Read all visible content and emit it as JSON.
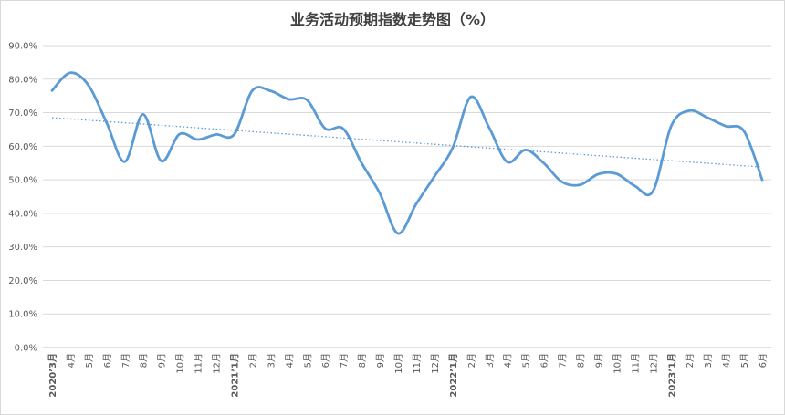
{
  "chart_data": {
    "type": "line",
    "title": "业务活动预期指数走势图（%）",
    "xlabel": "",
    "ylabel": "",
    "ylim": [
      0,
      90
    ],
    "yticks": [
      "0.0%",
      "10.0%",
      "20.0%",
      "30.0%",
      "40.0%",
      "50.0%",
      "60.0%",
      "70.0%",
      "80.0%",
      "90.0%"
    ],
    "grid": true,
    "trendline": {
      "type": "linear",
      "style": "dotted",
      "start": 68.5,
      "end": 53.8
    },
    "colors": {
      "series": "#5b9bd5",
      "grid": "#d9d9d9",
      "axis_text": "#595959",
      "title": "#404040"
    },
    "categories": [
      "2020’3月",
      "4月",
      "5月",
      "6月",
      "7月",
      "8月",
      "9月",
      "10月",
      "11月",
      "12月",
      "2021’1月",
      "2月",
      "3月",
      "4月",
      "5月",
      "6月",
      "7月",
      "8月",
      "9月",
      "10月",
      "11月",
      "12月",
      "2022’1月",
      "2月",
      "3月",
      "4月",
      "5月",
      "6月",
      "7月",
      "8月",
      "9月",
      "10月",
      "11月",
      "12月",
      "2023’1月",
      "2月",
      "3月",
      "4月",
      "5月",
      "6月"
    ],
    "series": [
      {
        "values": [
          76.6,
          81.9,
          78.2,
          67.0,
          55.4,
          69.5,
          55.6,
          63.6,
          62.0,
          63.5,
          63.5,
          76.6,
          76.5,
          74.0,
          73.8,
          65.3,
          65.2,
          55.0,
          46.0,
          34.0,
          42.8,
          51.0,
          59.5,
          74.7,
          65.6,
          55.3,
          58.9,
          55.0,
          49.4,
          48.5,
          51.7,
          51.8,
          48.2,
          46.6,
          66.0,
          70.6,
          68.5,
          66.0,
          64.5,
          50.0
        ]
      }
    ]
  }
}
